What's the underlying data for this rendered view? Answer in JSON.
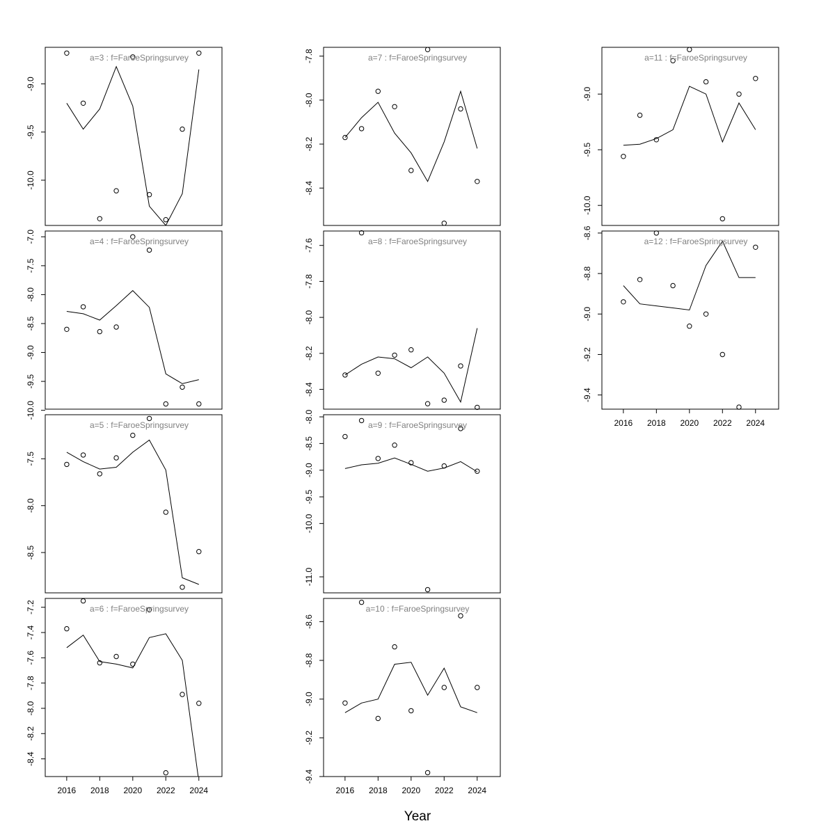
{
  "figure": {
    "xlabel": "Year",
    "xticks": [
      2016,
      2018,
      2020,
      2022,
      2024
    ],
    "xlim": [
      2014.7,
      2025.4
    ]
  },
  "chart_data": [
    {
      "type": "line",
      "title": "a=3  :  f=FaroeSpringsurvey",
      "x": [
        2016,
        2017,
        2018,
        2019,
        2020,
        2021,
        2022,
        2023,
        2024
      ],
      "observed": [
        -8.68,
        -9.2,
        -10.4,
        -10.11,
        -8.72,
        -10.15,
        -10.41,
        -9.47,
        -8.68
      ],
      "fitted": [
        -9.2,
        -9.47,
        -9.26,
        -8.82,
        -9.23,
        -10.27,
        -10.47,
        -10.14,
        -8.85
      ],
      "yticks": [
        -10.0,
        -9.5,
        -9.0
      ],
      "ytick_labels": [
        "-10.0",
        "-9.5",
        "-9.0"
      ],
      "ylim": [
        -10.47,
        -8.62
      ]
    },
    {
      "type": "line",
      "title": "a=4  :  f=FaroeSpringsurvey",
      "x": [
        2016,
        2017,
        2018,
        2019,
        2020,
        2021,
        2022,
        2023,
        2024
      ],
      "observed": [
        -8.6,
        -8.21,
        -8.64,
        -8.56,
        -7.0,
        -7.23,
        -9.89,
        -9.6,
        -9.89
      ],
      "fitted": [
        -8.29,
        -8.33,
        -8.44,
        -8.19,
        -7.93,
        -8.22,
        -9.37,
        -9.54,
        -9.47
      ],
      "yticks": [
        -10.0,
        -9.5,
        -9.0,
        -8.5,
        -8.0,
        -7.5,
        -7.0
      ],
      "ytick_labels": [
        "-10.0",
        "-9.5",
        "-9.0",
        "-8.5",
        "-8.0",
        "-7.5",
        "-7.0"
      ],
      "ylim": [
        -9.98,
        -6.9
      ]
    },
    {
      "type": "line",
      "title": "a=5  :  f=FaroeSpringsurvey",
      "x": [
        2016,
        2017,
        2018,
        2019,
        2020,
        2021,
        2022,
        2023,
        2024
      ],
      "observed": [
        -7.56,
        -7.46,
        -7.66,
        -7.49,
        -7.25,
        -7.07,
        -8.07,
        -8.87,
        -8.49
      ],
      "fitted": [
        -7.43,
        -7.53,
        -7.61,
        -7.59,
        -7.43,
        -7.3,
        -7.62,
        -8.77,
        -8.84
      ],
      "yticks": [
        -8.5,
        -8.0,
        -7.5
      ],
      "ytick_labels": [
        "-8.5",
        "-8.0",
        "-7.5"
      ],
      "ylim": [
        -8.93,
        -7.03
      ]
    },
    {
      "type": "line",
      "title": "a=6  :  f=FaroeSpringsurvey",
      "x": [
        2016,
        2017,
        2018,
        2019,
        2020,
        2021,
        2022,
        2023,
        2024
      ],
      "observed": [
        -7.37,
        -7.15,
        -7.64,
        -7.59,
        -7.65,
        -7.22,
        -8.51,
        -7.89,
        -7.96
      ],
      "fitted": [
        -7.52,
        -7.42,
        -7.63,
        -7.65,
        -7.68,
        -7.44,
        -7.41,
        -7.62,
        -8.58
      ],
      "yticks": [
        -8.4,
        -8.2,
        -8.0,
        -7.8,
        -7.6,
        -7.4,
        -7.2
      ],
      "ytick_labels": [
        "-8.4",
        "-8.2",
        "-8.0",
        "-7.8",
        "-7.6",
        "-7.4",
        "-7.2"
      ],
      "ylim": [
        -8.54,
        -7.13
      ]
    },
    {
      "type": "line",
      "title": "a=7  :  f=FaroeSpringsurvey",
      "x": [
        2016,
        2017,
        2018,
        2019,
        2020,
        2021,
        2022,
        2023,
        2024
      ],
      "observed": [
        -8.17,
        -8.13,
        -7.96,
        -8.03,
        -8.32,
        -7.77,
        -8.56,
        -8.04,
        -8.37
      ],
      "fitted": [
        -8.17,
        -8.08,
        -8.01,
        -8.15,
        -8.24,
        -8.37,
        -8.19,
        -7.96,
        -8.22
      ],
      "yticks": [
        -8.4,
        -8.2,
        -8.0,
        -7.8
      ],
      "ytick_labels": [
        "-8.4",
        "-8.2",
        "-8.0",
        "-7.8"
      ],
      "ylim": [
        -8.57,
        -7.76
      ]
    },
    {
      "type": "line",
      "title": "a=8  :  f=FaroeSpringsurvey",
      "x": [
        2016,
        2017,
        2018,
        2019,
        2020,
        2021,
        2022,
        2023,
        2024
      ],
      "observed": [
        -8.32,
        -7.53,
        -8.31,
        -8.21,
        -8.18,
        -8.48,
        -8.46,
        -8.27,
        -8.5
      ],
      "fitted": [
        -8.32,
        -8.26,
        -8.22,
        -8.23,
        -8.28,
        -8.22,
        -8.31,
        -8.47,
        -8.06
      ],
      "yticks": [
        -8.4,
        -8.2,
        -8.0,
        -7.8,
        -7.6
      ],
      "ytick_labels": [
        "-8.4",
        "-8.2",
        "-8.0",
        "-7.8",
        "-7.6"
      ],
      "ylim": [
        -8.51,
        -7.52
      ]
    },
    {
      "type": "line",
      "title": "a=9  :  f=FaroeSpringsurvey",
      "x": [
        2016,
        2017,
        2018,
        2019,
        2020,
        2021,
        2022,
        2023,
        2024
      ],
      "observed": [
        -8.37,
        -8.07,
        -8.78,
        -8.53,
        -8.86,
        -11.24,
        -8.92,
        -8.22,
        -9.02
      ],
      "fitted": [
        -8.97,
        -8.9,
        -8.87,
        -8.77,
        -8.89,
        -9.02,
        -8.96,
        -8.84,
        -9.03
      ],
      "yticks": [
        -11.0,
        -10.0,
        -9.5,
        -9.0,
        -8.5,
        -8.0
      ],
      "ytick_labels": [
        "-11.0",
        "-10.0",
        "-9.5",
        "-9.0",
        "-8.5",
        "-8.0"
      ],
      "ylim": [
        -11.3,
        -7.96
      ]
    },
    {
      "type": "line",
      "title": "a=10  :  f=FaroeSpringsurvey",
      "x": [
        2016,
        2017,
        2018,
        2019,
        2020,
        2021,
        2022,
        2023,
        2024
      ],
      "observed": [
        -9.02,
        -8.5,
        -9.1,
        -8.73,
        -9.06,
        -9.38,
        -8.94,
        -8.57,
        -8.94
      ],
      "fitted": [
        -9.07,
        -9.02,
        -9.0,
        -8.82,
        -8.81,
        -8.98,
        -8.84,
        -9.04,
        -9.07
      ],
      "yticks": [
        -9.4,
        -9.2,
        -9.0,
        -8.8,
        -8.6
      ],
      "ytick_labels": [
        "-9.4",
        "-9.2",
        "-9.0",
        "-8.8",
        "-8.6"
      ],
      "ylim": [
        -9.4,
        -8.48
      ]
    },
    {
      "type": "line",
      "title": "a=11  :  f=FaroeSpringsurvey",
      "x": [
        2016,
        2017,
        2018,
        2019,
        2020,
        2021,
        2022,
        2023,
        2024
      ],
      "observed": [
        -9.56,
        -9.19,
        -9.41,
        -8.7,
        -8.6,
        -8.89,
        -10.12,
        -9.0,
        -8.86
      ],
      "fitted": [
        -9.46,
        -9.45,
        -9.4,
        -9.32,
        -8.93,
        -9.0,
        -9.43,
        -9.08,
        -9.32
      ],
      "yticks": [
        -10.0,
        -9.5,
        -9.0
      ],
      "ytick_labels": [
        "-10.0",
        "-9.5",
        "-9.0"
      ],
      "ylim": [
        -10.18,
        -8.58
      ]
    },
    {
      "type": "line",
      "title": "a=12  :  f=FaroeSpringsurvey",
      "x": [
        2016,
        2017,
        2018,
        2019,
        2020,
        2021,
        2022,
        2023,
        2024
      ],
      "observed": [
        -8.94,
        -8.83,
        -8.6,
        -8.86,
        -9.06,
        -9.0,
        -9.2,
        -9.46,
        -8.67
      ],
      "fitted": [
        -8.86,
        -8.95,
        -8.96,
        -8.97,
        -8.98,
        -8.76,
        -8.64,
        -8.82,
        -8.82
      ],
      "yticks": [
        -9.4,
        -9.2,
        -9.0,
        -8.8,
        -8.6
      ],
      "ytick_labels": [
        "-9.4",
        "-9.2",
        "-9.0",
        "-8.8",
        "-8.6"
      ],
      "ylim": [
        -9.47,
        -8.59
      ]
    }
  ]
}
